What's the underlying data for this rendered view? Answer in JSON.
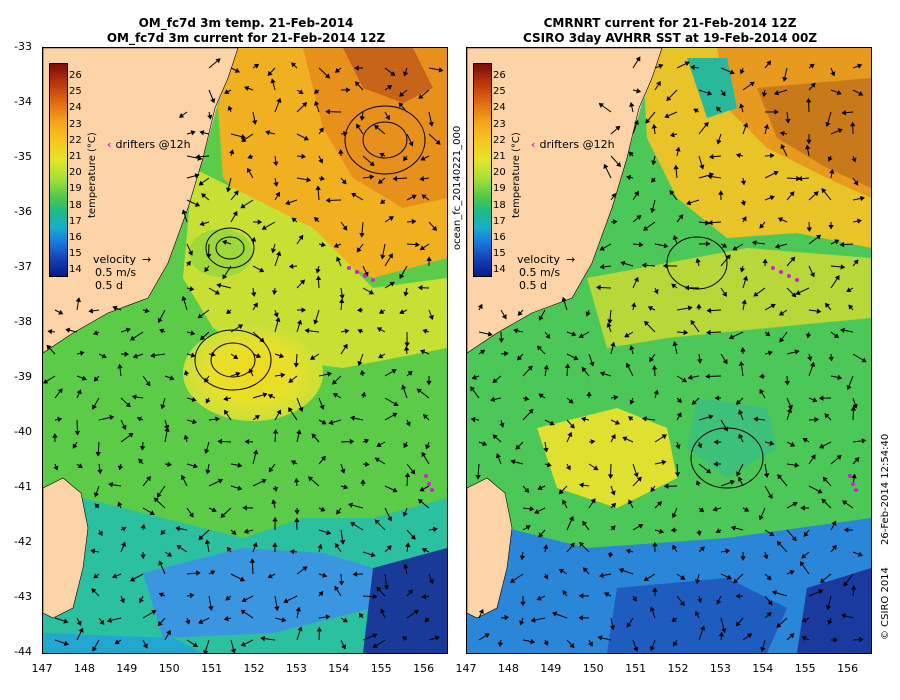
{
  "left": {
    "title_line1": "OM_fc7d 3m temp. 21-Feb-2014",
    "title_line2": "OM_fc7d 3m current for 21-Feb-2014 12Z"
  },
  "right": {
    "title_line1": "CMRNRT current for 21-Feb-2014 12Z",
    "title_line2": "CSIRO 3day AVHRR SST at 19-Feb-2014 00Z"
  },
  "colorbar": {
    "title": "temperature (°C)",
    "ticks": [
      "26",
      "25",
      "24",
      "23",
      "22",
      "21",
      "20",
      "19",
      "18",
      "17",
      "16",
      "15",
      "14"
    ]
  },
  "legend": {
    "drifters": "drifters @12h",
    "velocity": "velocity",
    "velocity_scale": "0.5 m/s",
    "velocity_time": "0.5 d"
  },
  "axes": {
    "y_ticks": [
      "-33",
      "-34",
      "-35",
      "-36",
      "-37",
      "-38",
      "-39",
      "-40",
      "-41",
      "-42",
      "-43",
      "-44"
    ],
    "x_ticks": [
      "147",
      "148",
      "149",
      "150",
      "151",
      "152",
      "153",
      "154",
      "155",
      "156"
    ]
  },
  "side_labels": {
    "middle": "ocean_fc_20140221_000",
    "right_credit": "© CSIRO 2014",
    "right_date": "26-Feb-2014 12:54:40"
  },
  "colors": {
    "land": "#fcd4a8",
    "drifter": "#d020d0"
  }
}
